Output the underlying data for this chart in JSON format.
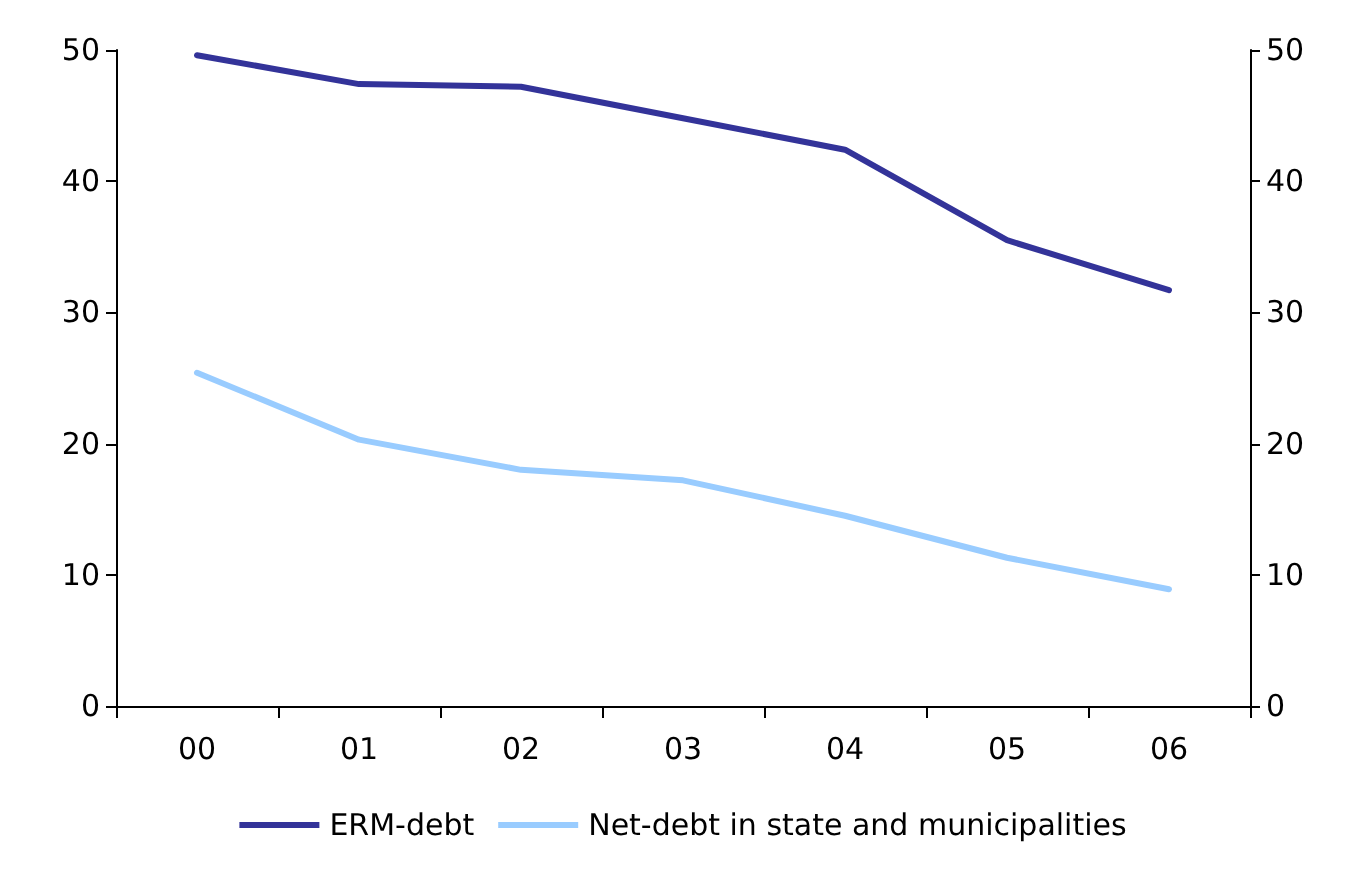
{
  "chart_data": {
    "type": "line",
    "categories": [
      "00",
      "01",
      "02",
      "03",
      "04",
      "05",
      "06"
    ],
    "series": [
      {
        "name": "ERM-debt",
        "color": "#333399",
        "values": [
          49.6,
          47.4,
          47.2,
          44.8,
          42.4,
          35.5,
          31.7
        ]
      },
      {
        "name": "Net-debt in state and municipalities",
        "color": "#99ccff",
        "values": [
          25.4,
          20.3,
          18.0,
          17.2,
          14.5,
          11.3,
          8.9
        ]
      }
    ],
    "ylim": [
      0,
      50
    ],
    "yticks": [
      0,
      10,
      20,
      30,
      40,
      50
    ],
    "y2lim": [
      0,
      50
    ],
    "y2ticks": [
      0,
      10,
      20,
      30,
      40,
      50
    ],
    "grid": false,
    "legend": "bottom",
    "marker": "none",
    "line_style": "solid"
  }
}
